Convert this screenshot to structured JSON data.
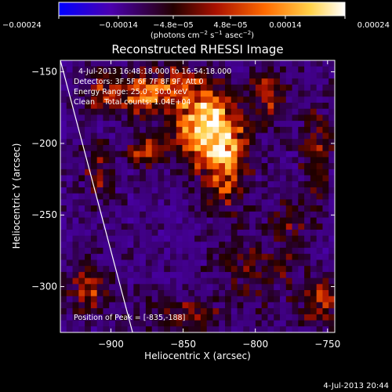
{
  "chart_data": {
    "type": "heatmap",
    "title": "Reconstructed RHESSI Image",
    "xlabel": "Heliocentric X (arcsec)",
    "ylabel": "Heliocentric Y (arcsec)",
    "xlim": [
      -935,
      -745
    ],
    "ylim": [
      -332,
      -142
    ],
    "x_ticks": [
      -900,
      -850,
      -800,
      -750
    ],
    "x_tick_labels": [
      "−900",
      "−850",
      "−800",
      "−750"
    ],
    "y_ticks": [
      -150,
      -200,
      -250,
      -300
    ],
    "y_tick_labels": [
      "−150",
      "−200",
      "−250",
      "−300"
    ],
    "colorbar": {
      "range": [
        -0.00024,
        0.00024
      ],
      "tick_values": [
        -0.00024,
        -0.00014,
        -4.8e-05,
        4.8e-05,
        0.00014,
        0.00024
      ],
      "tick_labels": [
        "−0.00024",
        "−0.00014",
        "−4.8e−05",
        "4.8e−05",
        "0.00014",
        "0.00024"
      ],
      "units_prefix": "(photons cm",
      "units_exp1": "−2",
      "units_mid": " s",
      "units_exp2": "−1",
      "units_mid2": " asec",
      "units_exp3": "−2",
      "units_suffix": ")",
      "colors": [
        "#0000ff",
        "#4b00b0",
        "#3a0000",
        "#aa1100",
        "#ff6a00",
        "#ffd24a",
        "#ffffff"
      ]
    },
    "annotations": [
      "4-Jul-2013 16:48:18.000 to 16:54:18.000",
      "Detectors: 3F 5F 6F 7F 8F 9F, Att 0",
      "Energy Range: 25.0 - 50.0 keV",
      "Clean    Total counts: 1.04E+04"
    ],
    "peak_label": "Position of Peak = [-835,-188]",
    "peak": [
      -835,
      -188
    ],
    "limb_line": [
      [
        -935,
        -142
      ],
      [
        -885,
        -332
      ]
    ],
    "emission_sources": [
      {
        "x": -835,
        "y": -188,
        "amp": 1.0,
        "sx": 14,
        "sy": 18
      },
      {
        "x": -875,
        "y": -205,
        "amp": 0.55,
        "sx": 9,
        "sy": 8
      },
      {
        "x": -860,
        "y": -160,
        "amp": 0.5,
        "sx": 16,
        "sy": 10
      },
      {
        "x": -820,
        "y": -215,
        "amp": 0.6,
        "sx": 10,
        "sy": 22
      },
      {
        "x": -905,
        "y": -165,
        "amp": 0.45,
        "sx": 10,
        "sy": 9
      },
      {
        "x": -908,
        "y": -220,
        "amp": 0.35,
        "sx": 8,
        "sy": 14
      },
      {
        "x": -880,
        "y": -170,
        "amp": 0.45,
        "sx": 10,
        "sy": 10
      },
      {
        "x": -790,
        "y": -165,
        "amp": 0.4,
        "sx": 10,
        "sy": 14
      },
      {
        "x": -758,
        "y": -205,
        "amp": 0.35,
        "sx": 8,
        "sy": 20
      },
      {
        "x": -755,
        "y": -310,
        "amp": 0.45,
        "sx": 10,
        "sy": 12
      },
      {
        "x": -915,
        "y": -300,
        "amp": 0.45,
        "sx": 10,
        "sy": 14
      },
      {
        "x": -800,
        "y": -290,
        "amp": 0.3,
        "sx": 18,
        "sy": 16
      },
      {
        "x": -775,
        "y": -255,
        "amp": 0.3,
        "sx": 10,
        "sy": 14
      },
      {
        "x": -850,
        "y": -320,
        "amp": 0.35,
        "sx": 20,
        "sy": 8
      }
    ]
  },
  "footer_date": "4-Jul-2013 20:44"
}
